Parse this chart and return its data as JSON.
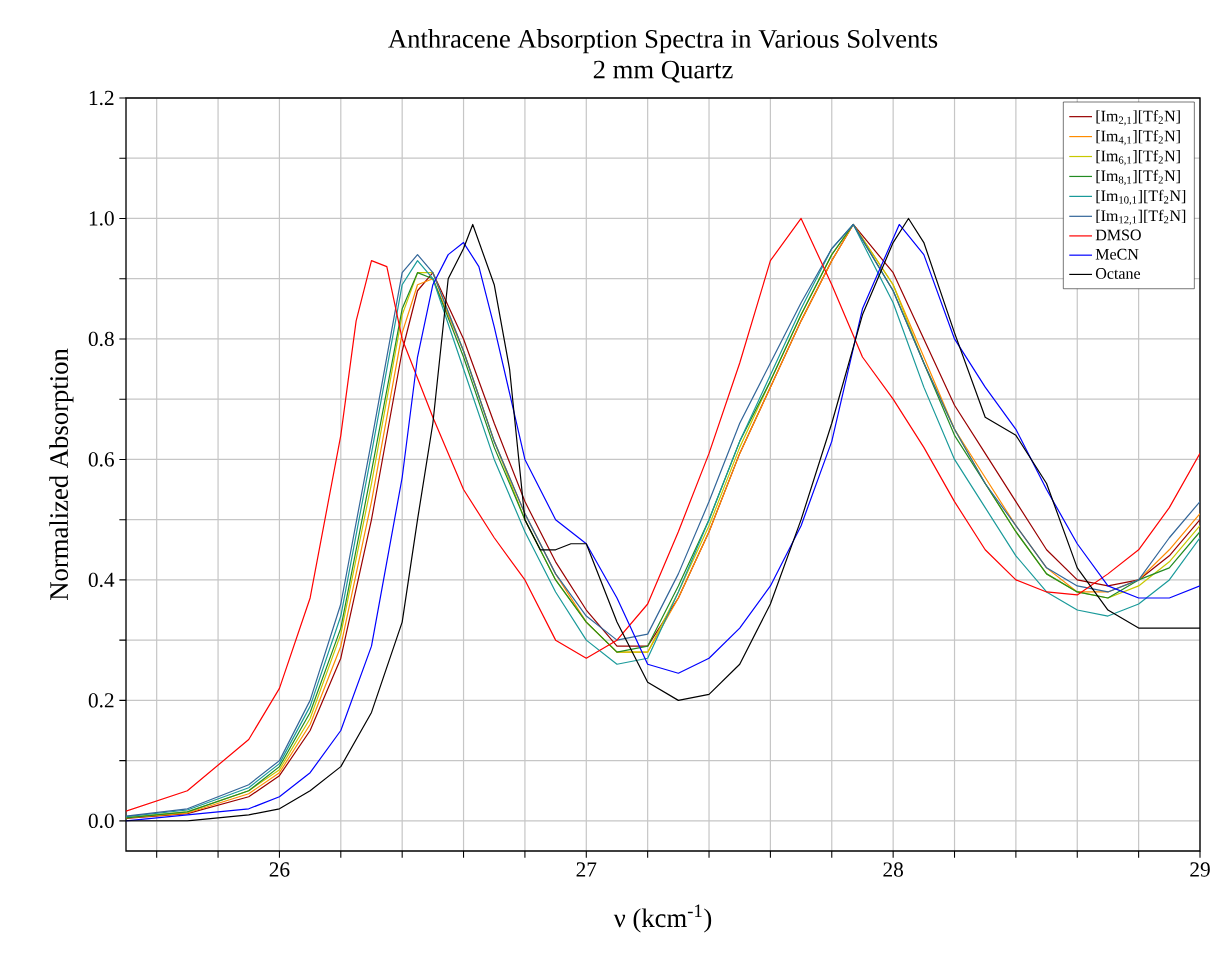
{
  "chart_data": {
    "type": "line",
    "title": "Anthracene Absorption Spectra in Various Solvents",
    "subtitle": "2 mm Quartz",
    "xlabel": "ν (kcm$^{-1}$)",
    "ylabel": "Normalized Absorption",
    "xlim": [
      25.5,
      29
    ],
    "ylim": [
      -0.05,
      1.2
    ],
    "xticks": [
      {
        "value": 25.6,
        "label": null
      },
      {
        "value": 25.8,
        "label": null
      },
      26,
      {
        "value": 26.2,
        "label": null
      },
      {
        "value": 26.4,
        "label": null
      },
      {
        "value": 26.6,
        "label": null
      },
      {
        "value": 26.8,
        "label": null
      },
      27,
      {
        "value": 27.2,
        "label": null
      },
      {
        "value": 27.4,
        "label": null
      },
      {
        "value": 27.6,
        "label": null
      },
      {
        "value": 27.8,
        "label": null
      },
      28,
      {
        "value": 28.2,
        "label": null
      },
      {
        "value": 28.4,
        "label": null
      },
      {
        "value": 28.6,
        "label": null
      },
      {
        "value": 28.8,
        "label": null
      },
      29
    ],
    "yticks": [
      {
        "value": 0,
        "label": "0.0"
      },
      {
        "value": 0.1,
        "label": null
      },
      {
        "value": 0.2,
        "label": "0.2"
      },
      {
        "value": 0.3,
        "label": null
      },
      {
        "value": 0.4,
        "label": "0.4"
      },
      {
        "value": 0.5,
        "label": null
      },
      {
        "value": 0.6,
        "label": "0.6"
      },
      {
        "value": 0.7,
        "label": null
      },
      {
        "value": 0.8,
        "label": "0.8"
      },
      {
        "value": 0.9,
        "label": null
      },
      {
        "value": 1.0,
        "label": "1.0"
      },
      {
        "value": 1.1,
        "label": null
      },
      {
        "value": 1.2,
        "label": "1.2"
      }
    ],
    "grid": true,
    "legend": "top right",
    "marker": "none",
    "line_style": "solid",
    "x": [
      25.5,
      25.7,
      25.9,
      26.0,
      26.1,
      26.2,
      26.3,
      26.4,
      26.45,
      26.5,
      26.6,
      26.7,
      26.8,
      26.9,
      27.0,
      27.1,
      27.2,
      27.3,
      27.4,
      27.5,
      27.6,
      27.7,
      27.8,
      27.87,
      28.0,
      28.1,
      28.2,
      28.3,
      28.4,
      28.5,
      28.6,
      28.7,
      28.8,
      28.9,
      29.0
    ],
    "series": [
      {
        "name": "[Im$_{2,1}$][Tf$_{2}$N]",
        "color": "#990000",
        "values": [
          0.004,
          0.012,
          0.04,
          0.075,
          0.15,
          0.27,
          0.5,
          0.78,
          0.88,
          0.91,
          0.8,
          0.66,
          0.53,
          0.43,
          0.35,
          0.29,
          0.29,
          0.37,
          0.48,
          0.61,
          0.72,
          0.83,
          0.93,
          0.99,
          0.91,
          0.8,
          0.69,
          0.61,
          0.53,
          0.45,
          0.4,
          0.39,
          0.4,
          0.44,
          0.5
        ]
      },
      {
        "name": "[Im$_{4,1}$][Tf$_{2}$N]",
        "color": "#ff8c00",
        "values": [
          0.005,
          0.013,
          0.045,
          0.08,
          0.16,
          0.29,
          0.53,
          0.81,
          0.89,
          0.9,
          0.78,
          0.63,
          0.51,
          0.41,
          0.33,
          0.28,
          0.28,
          0.37,
          0.48,
          0.61,
          0.72,
          0.83,
          0.93,
          0.99,
          0.89,
          0.77,
          0.65,
          0.57,
          0.49,
          0.42,
          0.38,
          0.38,
          0.4,
          0.45,
          0.51
        ]
      },
      {
        "name": "[Im$_{6,1}$][Tf$_{2}$N]",
        "color": "#c8c800",
        "values": [
          0.006,
          0.015,
          0.05,
          0.085,
          0.17,
          0.31,
          0.56,
          0.84,
          0.91,
          0.91,
          0.78,
          0.63,
          0.5,
          0.4,
          0.33,
          0.28,
          0.28,
          0.38,
          0.49,
          0.62,
          0.73,
          0.84,
          0.94,
          0.99,
          0.89,
          0.76,
          0.65,
          0.56,
          0.48,
          0.41,
          0.38,
          0.37,
          0.39,
          0.43,
          0.49
        ]
      },
      {
        "name": "[Im$_{8,1}$][Tf$_{2}$N]",
        "color": "#228b22",
        "values": [
          0.005,
          0.015,
          0.05,
          0.09,
          0.18,
          0.32,
          0.58,
          0.85,
          0.91,
          0.9,
          0.77,
          0.62,
          0.5,
          0.4,
          0.33,
          0.28,
          0.29,
          0.39,
          0.5,
          0.63,
          0.73,
          0.84,
          0.94,
          0.99,
          0.88,
          0.76,
          0.64,
          0.56,
          0.48,
          0.41,
          0.38,
          0.37,
          0.4,
          0.42,
          0.48
        ]
      },
      {
        "name": "[Im$_{10,1}$][Tf$_{2}$N]",
        "color": "#1a9a9a",
        "values": [
          0.007,
          0.018,
          0.055,
          0.095,
          0.19,
          0.34,
          0.61,
          0.89,
          0.93,
          0.9,
          0.75,
          0.6,
          0.48,
          0.38,
          0.3,
          0.26,
          0.27,
          0.38,
          0.5,
          0.63,
          0.74,
          0.85,
          0.95,
          0.99,
          0.86,
          0.72,
          0.6,
          0.52,
          0.44,
          0.38,
          0.35,
          0.34,
          0.36,
          0.4,
          0.47
        ]
      },
      {
        "name": "[Im$_{12,1}$][Tf$_{2}$N]",
        "color": "#336699",
        "values": [
          0.008,
          0.02,
          0.06,
          0.1,
          0.2,
          0.36,
          0.63,
          0.91,
          0.94,
          0.91,
          0.78,
          0.63,
          0.51,
          0.41,
          0.34,
          0.3,
          0.31,
          0.41,
          0.53,
          0.66,
          0.76,
          0.86,
          0.95,
          0.99,
          0.88,
          0.76,
          0.65,
          0.56,
          0.49,
          0.42,
          0.39,
          0.38,
          0.4,
          0.47,
          0.53
        ]
      },
      {
        "name": "DMSO",
        "color": "#ff0000",
        "x": [
          25.5,
          25.7,
          25.9,
          26.0,
          26.1,
          26.2,
          26.25,
          26.3,
          26.35,
          26.4,
          26.5,
          26.6,
          26.7,
          26.8,
          26.9,
          27.0,
          27.1,
          27.2,
          27.3,
          27.4,
          27.5,
          27.6,
          27.7,
          27.8,
          27.9,
          28.0,
          28.1,
          28.2,
          28.3,
          28.4,
          28.5,
          28.6,
          28.7,
          28.8,
          28.9,
          29.0
        ],
        "values": [
          0.016,
          0.05,
          0.135,
          0.22,
          0.37,
          0.64,
          0.83,
          0.93,
          0.92,
          0.8,
          0.67,
          0.55,
          0.47,
          0.4,
          0.3,
          0.27,
          0.3,
          0.36,
          0.48,
          0.61,
          0.76,
          0.93,
          1.0,
          0.89,
          0.77,
          0.7,
          0.62,
          0.53,
          0.45,
          0.4,
          0.38,
          0.375,
          0.41,
          0.45,
          0.52,
          0.61
        ]
      },
      {
        "name": "MeCN",
        "color": "#0000ff",
        "x": [
          25.5,
          25.7,
          25.9,
          26.0,
          26.1,
          26.2,
          26.3,
          26.4,
          26.45,
          26.5,
          26.55,
          26.6,
          26.65,
          26.7,
          26.8,
          26.9,
          27.0,
          27.1,
          27.2,
          27.3,
          27.4,
          27.5,
          27.6,
          27.7,
          27.8,
          27.9,
          28.02,
          28.1,
          28.2,
          28.3,
          28.4,
          28.5,
          28.6,
          28.7,
          28.8,
          28.9,
          29.0
        ],
        "values": [
          0.0,
          0.01,
          0.02,
          0.04,
          0.08,
          0.15,
          0.29,
          0.57,
          0.77,
          0.89,
          0.94,
          0.96,
          0.92,
          0.82,
          0.6,
          0.5,
          0.46,
          0.37,
          0.26,
          0.245,
          0.27,
          0.32,
          0.39,
          0.49,
          0.63,
          0.85,
          0.99,
          0.94,
          0.8,
          0.72,
          0.65,
          0.55,
          0.46,
          0.39,
          0.37,
          0.37,
          0.39
        ]
      },
      {
        "name": "Octane",
        "color": "#000000",
        "x": [
          25.5,
          25.7,
          25.9,
          26.0,
          26.1,
          26.2,
          26.3,
          26.4,
          26.45,
          26.5,
          26.55,
          26.6,
          26.63,
          26.7,
          26.75,
          26.8,
          26.85,
          26.9,
          26.95,
          27.0,
          27.1,
          27.2,
          27.3,
          27.4,
          27.5,
          27.6,
          27.7,
          27.8,
          27.9,
          28.0,
          28.05,
          28.1,
          28.2,
          28.3,
          28.4,
          28.5,
          28.6,
          28.7,
          28.8,
          28.9,
          29.0
        ],
        "values": [
          0.0,
          0.0,
          0.01,
          0.02,
          0.05,
          0.09,
          0.18,
          0.33,
          0.5,
          0.66,
          0.9,
          0.95,
          0.99,
          0.89,
          0.75,
          0.5,
          0.45,
          0.45,
          0.46,
          0.46,
          0.33,
          0.23,
          0.2,
          0.21,
          0.26,
          0.36,
          0.5,
          0.66,
          0.84,
          0.96,
          1.0,
          0.96,
          0.81,
          0.67,
          0.64,
          0.56,
          0.42,
          0.35,
          0.32,
          0.32,
          0.32
        ]
      }
    ]
  }
}
